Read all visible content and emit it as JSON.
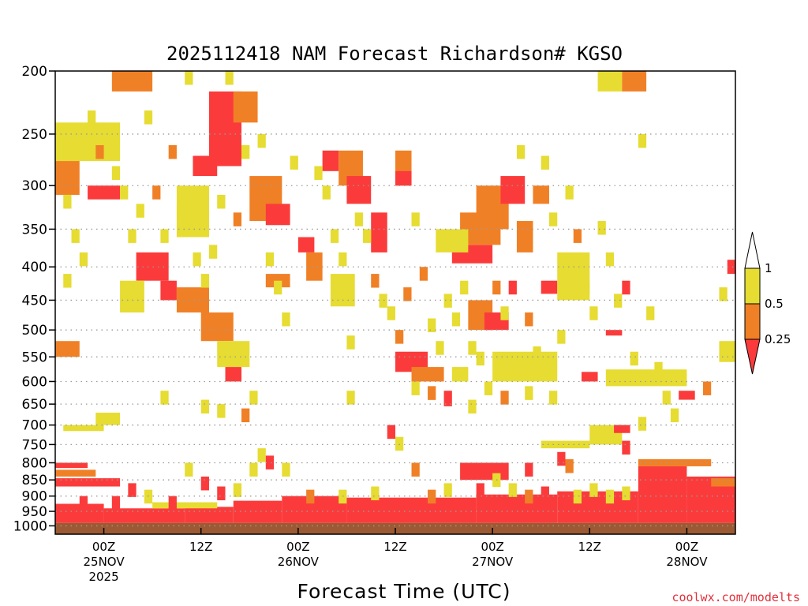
{
  "chart_data": {
    "type": "heatmap",
    "title": "2025112418 NAM Forecast Richardson# KGSO",
    "xlabel": "Forecast Time (UTC)",
    "ylabel": "",
    "credit": "coolwx.com/modelts",
    "y_scale": "log",
    "ylim": [
      1000,
      200
    ],
    "y_ticks": [
      200,
      250,
      300,
      350,
      400,
      450,
      500,
      550,
      600,
      650,
      700,
      750,
      800,
      850,
      900,
      950,
      1000
    ],
    "y_tick_labels": [
      "200",
      "250",
      "300",
      "350",
      "400",
      "450",
      "500",
      "550",
      "600",
      "650",
      "700",
      "750",
      "800",
      "850",
      "900",
      "950",
      "1000"
    ],
    "x_range_hours": [
      -6,
      78
    ],
    "x_ticks": [
      {
        "hour": 0,
        "lines": [
          "00Z",
          "25NOV",
          "2025"
        ]
      },
      {
        "hour": 12,
        "lines": [
          "12Z"
        ]
      },
      {
        "hour": 24,
        "lines": [
          "00Z",
          "26NOV"
        ]
      },
      {
        "hour": 36,
        "lines": [
          "12Z"
        ]
      },
      {
        "hour": 48,
        "lines": [
          "00Z",
          "27NOV"
        ]
      },
      {
        "hour": 60,
        "lines": [
          "12Z"
        ]
      },
      {
        "hour": 72,
        "lines": [
          "00Z",
          "28NOV"
        ]
      }
    ],
    "surface_pressure": 990,
    "colors": {
      "lt_025": "#fb3b3b",
      "025_05": "#f08026",
      "05_1": "#e6dc32",
      "ground": "#9b5a33",
      "grid": "#9a9a9a"
    },
    "legend": {
      "labels": [
        "1",
        "0.5",
        "0.25"
      ]
    },
    "bands": [
      {
        "h0": -6,
        "h1": 0,
        "p_top": 925,
        "p_bot": 990,
        "cls": "lt_025"
      },
      {
        "h0": 0,
        "h1": 10,
        "p_top": 940,
        "p_bot": 990,
        "cls": "lt_025"
      },
      {
        "h0": 10,
        "h1": 16,
        "p_top": 935,
        "p_bot": 990,
        "cls": "lt_025"
      },
      {
        "h0": 16,
        "h1": 22,
        "p_top": 915,
        "p_bot": 990,
        "cls": "lt_025"
      },
      {
        "h0": 22,
        "h1": 30,
        "p_top": 900,
        "p_bot": 990,
        "cls": "lt_025"
      },
      {
        "h0": 30,
        "h1": 46,
        "p_top": 905,
        "p_bot": 990,
        "cls": "lt_025"
      },
      {
        "h0": 46,
        "h1": 56,
        "p_top": 895,
        "p_bot": 990,
        "cls": "lt_025"
      },
      {
        "h0": 56,
        "h1": 66,
        "p_top": 885,
        "p_bot": 990,
        "cls": "lt_025"
      },
      {
        "h0": 66,
        "h1": 72,
        "p_top": 810,
        "p_bot": 990,
        "cls": "lt_025"
      },
      {
        "h0": 72,
        "h1": 78,
        "p_top": 840,
        "p_bot": 990,
        "cls": "lt_025"
      },
      {
        "h0": -6,
        "h1": -2,
        "p_top": 800,
        "p_bot": 815,
        "cls": "lt_025"
      },
      {
        "h0": -6,
        "h1": -1,
        "p_top": 820,
        "p_bot": 840,
        "cls": "025_05"
      },
      {
        "h0": -6,
        "h1": 2,
        "p_top": 845,
        "p_bot": 870,
        "cls": "lt_025"
      },
      {
        "h0": 6,
        "h1": 14,
        "p_top": 920,
        "p_bot": 940,
        "cls": "05_1"
      },
      {
        "h0": 44,
        "h1": 50,
        "p_top": 800,
        "p_bot": 850,
        "cls": "lt_025"
      },
      {
        "h0": 66,
        "h1": 75,
        "p_top": 790,
        "p_bot": 810,
        "cls": "025_05"
      },
      {
        "h0": 75,
        "h1": 78,
        "p_top": 845,
        "p_bot": 870,
        "cls": "025_05"
      },
      {
        "h0": -5,
        "h1": 0,
        "p_top": 700,
        "p_bot": 715,
        "cls": "05_1"
      },
      {
        "h0": -1,
        "h1": 2,
        "p_top": 670,
        "p_bot": 700,
        "cls": "05_1"
      },
      {
        "h0": 1,
        "h1": 6,
        "p_top": 200,
        "p_bot": 215,
        "cls": "025_05"
      },
      {
        "h0": 61,
        "h1": 64,
        "p_top": 200,
        "p_bot": 215,
        "cls": "05_1"
      },
      {
        "h0": 64,
        "h1": 67,
        "p_top": 200,
        "p_bot": 215,
        "cls": "025_05"
      },
      {
        "h0": -6,
        "h1": 2,
        "p_top": 240,
        "p_bot": 275,
        "cls": "05_1"
      },
      {
        "h0": -6,
        "h1": -3,
        "p_top": 275,
        "p_bot": 310,
        "cls": "025_05"
      },
      {
        "h0": -2,
        "h1": 2,
        "p_top": 300,
        "p_bot": 315,
        "cls": "lt_025"
      },
      {
        "h0": 13,
        "h1": 17,
        "p_top": 215,
        "p_bot": 280,
        "cls": "lt_025"
      },
      {
        "h0": 11,
        "h1": 14,
        "p_top": 270,
        "p_bot": 290,
        "cls": "lt_025"
      },
      {
        "h0": 16,
        "h1": 19,
        "p_top": 215,
        "p_bot": 240,
        "cls": "025_05"
      },
      {
        "h0": 18,
        "h1": 22,
        "p_top": 290,
        "p_bot": 340,
        "cls": "025_05"
      },
      {
        "h0": 20,
        "h1": 23,
        "p_top": 320,
        "p_bot": 345,
        "cls": "lt_025"
      },
      {
        "h0": 9,
        "h1": 13,
        "p_top": 300,
        "p_bot": 360,
        "cls": "05_1"
      },
      {
        "h0": 4,
        "h1": 8,
        "p_top": 380,
        "p_bot": 420,
        "cls": "lt_025"
      },
      {
        "h0": 7,
        "h1": 9,
        "p_top": 420,
        "p_bot": 450,
        "cls": "lt_025"
      },
      {
        "h0": 9,
        "h1": 13,
        "p_top": 430,
        "p_bot": 470,
        "cls": "025_05"
      },
      {
        "h0": 12,
        "h1": 16,
        "p_top": 470,
        "p_bot": 520,
        "cls": "025_05"
      },
      {
        "h0": 14,
        "h1": 18,
        "p_top": 520,
        "p_bot": 570,
        "cls": "05_1"
      },
      {
        "h0": 15,
        "h1": 17,
        "p_top": 570,
        "p_bot": 600,
        "cls": "lt_025"
      },
      {
        "h0": 27,
        "h1": 29,
        "p_top": 265,
        "p_bot": 285,
        "cls": "lt_025"
      },
      {
        "h0": 29,
        "h1": 32,
        "p_top": 265,
        "p_bot": 300,
        "cls": "025_05"
      },
      {
        "h0": 30,
        "h1": 33,
        "p_top": 290,
        "p_bot": 320,
        "cls": "lt_025"
      },
      {
        "h0": 33,
        "h1": 35,
        "p_top": 330,
        "p_bot": 380,
        "cls": "lt_025"
      },
      {
        "h0": 36,
        "h1": 38,
        "p_top": 265,
        "p_bot": 300,
        "cls": "025_05"
      },
      {
        "h0": 36,
        "h1": 38,
        "p_top": 285,
        "p_bot": 300,
        "cls": "lt_025"
      },
      {
        "h0": 43,
        "h1": 48,
        "p_top": 370,
        "p_bot": 395,
        "cls": "lt_025"
      },
      {
        "h0": 44,
        "h1": 49,
        "p_top": 330,
        "p_bot": 370,
        "cls": "025_05"
      },
      {
        "h0": 41,
        "h1": 45,
        "p_top": 350,
        "p_bot": 380,
        "cls": "05_1"
      },
      {
        "h0": 46,
        "h1": 50,
        "p_top": 300,
        "p_bot": 350,
        "cls": "025_05"
      },
      {
        "h0": 49,
        "h1": 52,
        "p_top": 290,
        "p_bot": 320,
        "cls": "lt_025"
      },
      {
        "h0": 51,
        "h1": 53,
        "p_top": 340,
        "p_bot": 380,
        "cls": "025_05"
      },
      {
        "h0": 53,
        "h1": 55,
        "p_top": 300,
        "p_bot": 320,
        "cls": "025_05"
      },
      {
        "h0": 54,
        "h1": 56,
        "p_top": 420,
        "p_bot": 440,
        "cls": "lt_025"
      },
      {
        "h0": 56,
        "h1": 60,
        "p_top": 380,
        "p_bot": 450,
        "cls": "05_1"
      },
      {
        "h0": 45,
        "h1": 48,
        "p_top": 450,
        "p_bot": 500,
        "cls": "025_05"
      },
      {
        "h0": 47,
        "h1": 50,
        "p_top": 470,
        "p_bot": 500,
        "cls": "lt_025"
      },
      {
        "h0": 36,
        "h1": 40,
        "p_top": 540,
        "p_bot": 580,
        "cls": "lt_025"
      },
      {
        "h0": 38,
        "h1": 42,
        "p_top": 570,
        "p_bot": 600,
        "cls": "025_05"
      },
      {
        "h0": 43,
        "h1": 45,
        "p_top": 570,
        "p_bot": 600,
        "cls": "05_1"
      },
      {
        "h0": 42,
        "h1": 43,
        "p_top": 620,
        "p_bot": 655,
        "cls": "lt_025"
      },
      {
        "h0": 48,
        "h1": 56,
        "p_top": 540,
        "p_bot": 600,
        "cls": "05_1"
      },
      {
        "h0": 62,
        "h1": 72,
        "p_top": 575,
        "p_bot": 610,
        "cls": "05_1"
      },
      {
        "h0": 62,
        "h1": 64,
        "p_top": 500,
        "p_bot": 510,
        "cls": "lt_025"
      },
      {
        "h0": 59,
        "h1": 61,
        "p_top": 580,
        "p_bot": 600,
        "cls": "lt_025"
      },
      {
        "h0": 71,
        "h1": 73,
        "p_top": 620,
        "p_bot": 640,
        "cls": "lt_025"
      },
      {
        "h0": 54,
        "h1": 60,
        "p_top": 740,
        "p_bot": 760,
        "cls": "05_1"
      },
      {
        "h0": 60,
        "h1": 64,
        "p_top": 700,
        "p_bot": 750,
        "cls": "05_1"
      },
      {
        "h0": 63,
        "h1": 65,
        "p_top": 700,
        "p_bot": 720,
        "cls": "lt_025"
      },
      {
        "h0": 77,
        "h1": 78,
        "p_top": 390,
        "p_bot": 410,
        "cls": "lt_025"
      },
      {
        "h0": 76,
        "h1": 78,
        "p_top": 520,
        "p_bot": 560,
        "cls": "05_1"
      },
      {
        "h0": 25,
        "h1": 27,
        "p_top": 380,
        "p_bot": 420,
        "cls": "025_05"
      },
      {
        "h0": 20,
        "h1": 23,
        "p_top": 410,
        "p_bot": 430,
        "cls": "025_05"
      },
      {
        "h0": 28,
        "h1": 31,
        "p_top": 410,
        "p_bot": 460,
        "cls": "05_1"
      },
      {
        "h0": 2,
        "h1": 5,
        "p_top": 420,
        "p_bot": 470,
        "cls": "05_1"
      },
      {
        "h0": -6,
        "h1": -3,
        "p_top": 520,
        "p_bot": 550,
        "cls": "025_05"
      },
      {
        "h0": 24,
        "h1": 26,
        "p_top": 360,
        "p_bot": 380,
        "cls": "lt_025"
      }
    ],
    "scatter_cells": [
      {
        "h": -5,
        "p": 310,
        "cls": "05_1"
      },
      {
        "h": -4,
        "p": 350,
        "cls": "05_1"
      },
      {
        "h": -3,
        "p": 380,
        "cls": "05_1"
      },
      {
        "h": -5,
        "p": 410,
        "cls": "05_1"
      },
      {
        "h": -2,
        "p": 230,
        "cls": "05_1"
      },
      {
        "h": -1,
        "p": 260,
        "cls": "025_05"
      },
      {
        "h": 1,
        "p": 280,
        "cls": "05_1"
      },
      {
        "h": 2,
        "p": 300,
        "cls": "05_1"
      },
      {
        "h": 3,
        "p": 350,
        "cls": "05_1"
      },
      {
        "h": 4,
        "p": 320,
        "cls": "05_1"
      },
      {
        "h": 5,
        "p": 230,
        "cls": "05_1"
      },
      {
        "h": 6,
        "p": 300,
        "cls": "025_05"
      },
      {
        "h": 7,
        "p": 350,
        "cls": "05_1"
      },
      {
        "h": 8,
        "p": 260,
        "cls": "025_05"
      },
      {
        "h": 9,
        "p": 320,
        "cls": "05_1"
      },
      {
        "h": 10,
        "p": 200,
        "cls": "05_1"
      },
      {
        "h": 11,
        "p": 380,
        "cls": "05_1"
      },
      {
        "h": 12,
        "p": 410,
        "cls": "05_1"
      },
      {
        "h": 13,
        "p": 370,
        "cls": "05_1"
      },
      {
        "h": 14,
        "p": 310,
        "cls": "05_1"
      },
      {
        "h": 15,
        "p": 200,
        "cls": "05_1"
      },
      {
        "h": 16,
        "p": 330,
        "cls": "025_05"
      },
      {
        "h": 17,
        "p": 260,
        "cls": "05_1"
      },
      {
        "h": 19,
        "p": 250,
        "cls": "05_1"
      },
      {
        "h": 20,
        "p": 380,
        "cls": "05_1"
      },
      {
        "h": 21,
        "p": 420,
        "cls": "05_1"
      },
      {
        "h": 22,
        "p": 470,
        "cls": "05_1"
      },
      {
        "h": 23,
        "p": 270,
        "cls": "05_1"
      },
      {
        "h": 26,
        "p": 280,
        "cls": "05_1"
      },
      {
        "h": 27,
        "p": 300,
        "cls": "05_1"
      },
      {
        "h": 28,
        "p": 350,
        "cls": "05_1"
      },
      {
        "h": 29,
        "p": 380,
        "cls": "05_1"
      },
      {
        "h": 30,
        "p": 510,
        "cls": "05_1"
      },
      {
        "h": 31,
        "p": 330,
        "cls": "05_1"
      },
      {
        "h": 32,
        "p": 350,
        "cls": "05_1"
      },
      {
        "h": 33,
        "p": 410,
        "cls": "025_05"
      },
      {
        "h": 34,
        "p": 440,
        "cls": "05_1"
      },
      {
        "h": 35,
        "p": 460,
        "cls": "05_1"
      },
      {
        "h": 36,
        "p": 500,
        "cls": "025_05"
      },
      {
        "h": 37,
        "p": 430,
        "cls": "025_05"
      },
      {
        "h": 38,
        "p": 330,
        "cls": "05_1"
      },
      {
        "h": 39,
        "p": 400,
        "cls": "025_05"
      },
      {
        "h": 40,
        "p": 480,
        "cls": "05_1"
      },
      {
        "h": 41,
        "p": 520,
        "cls": "05_1"
      },
      {
        "h": 42,
        "p": 440,
        "cls": "05_1"
      },
      {
        "h": 43,
        "p": 470,
        "cls": "05_1"
      },
      {
        "h": 44,
        "p": 420,
        "cls": "05_1"
      },
      {
        "h": 45,
        "p": 520,
        "cls": "05_1"
      },
      {
        "h": 46,
        "p": 540,
        "cls": "05_1"
      },
      {
        "h": 47,
        "p": 600,
        "cls": "05_1"
      },
      {
        "h": 48,
        "p": 420,
        "cls": "025_05"
      },
      {
        "h": 49,
        "p": 460,
        "cls": "05_1"
      },
      {
        "h": 50,
        "p": 420,
        "cls": "lt_025"
      },
      {
        "h": 51,
        "p": 260,
        "cls": "05_1"
      },
      {
        "h": 52,
        "p": 470,
        "cls": "025_05"
      },
      {
        "h": 53,
        "p": 530,
        "cls": "05_1"
      },
      {
        "h": 54,
        "p": 270,
        "cls": "05_1"
      },
      {
        "h": 55,
        "p": 330,
        "cls": "05_1"
      },
      {
        "h": 56,
        "p": 500,
        "cls": "05_1"
      },
      {
        "h": 57,
        "p": 300,
        "cls": "05_1"
      },
      {
        "h": 58,
        "p": 350,
        "cls": "025_05"
      },
      {
        "h": 59,
        "p": 420,
        "cls": "05_1"
      },
      {
        "h": 60,
        "p": 460,
        "cls": "05_1"
      },
      {
        "h": 61,
        "p": 340,
        "cls": "05_1"
      },
      {
        "h": 62,
        "p": 380,
        "cls": "05_1"
      },
      {
        "h": 63,
        "p": 440,
        "cls": "05_1"
      },
      {
        "h": 64,
        "p": 420,
        "cls": "lt_025"
      },
      {
        "h": 65,
        "p": 540,
        "cls": "05_1"
      },
      {
        "h": 66,
        "p": 250,
        "cls": "05_1"
      },
      {
        "h": 67,
        "p": 460,
        "cls": "05_1"
      },
      {
        "h": 68,
        "p": 560,
        "cls": "05_1"
      },
      {
        "h": 69,
        "p": 620,
        "cls": "05_1"
      },
      {
        "h": 70,
        "p": 660,
        "cls": "05_1"
      },
      {
        "h": 74,
        "p": 600,
        "cls": "025_05"
      },
      {
        "h": 76,
        "p": 430,
        "cls": "05_1"
      },
      {
        "h": 12,
        "p": 640,
        "cls": "05_1"
      },
      {
        "h": 14,
        "p": 650,
        "cls": "05_1"
      },
      {
        "h": 18,
        "p": 620,
        "cls": "05_1"
      },
      {
        "h": 17,
        "p": 660,
        "cls": "025_05"
      },
      {
        "h": 7,
        "p": 620,
        "cls": "05_1"
      },
      {
        "h": 30,
        "p": 620,
        "cls": "05_1"
      },
      {
        "h": 38,
        "p": 600,
        "cls": "05_1"
      },
      {
        "h": 40,
        "p": 610,
        "cls": "025_05"
      },
      {
        "h": 45,
        "p": 640,
        "cls": "05_1"
      },
      {
        "h": 49,
        "p": 620,
        "cls": "025_05"
      },
      {
        "h": 52,
        "p": 610,
        "cls": "05_1"
      },
      {
        "h": 55,
        "p": 620,
        "cls": "05_1"
      },
      {
        "h": 10,
        "p": 800,
        "cls": "05_1"
      },
      {
        "h": 12,
        "p": 840,
        "cls": "lt_025"
      },
      {
        "h": 14,
        "p": 870,
        "cls": "lt_025"
      },
      {
        "h": 16,
        "p": 860,
        "cls": "05_1"
      },
      {
        "h": 18,
        "p": 800,
        "cls": "05_1"
      },
      {
        "h": 19,
        "p": 760,
        "cls": "05_1"
      },
      {
        "h": 20,
        "p": 780,
        "cls": "lt_025"
      },
      {
        "h": 22,
        "p": 800,
        "cls": "05_1"
      },
      {
        "h": 35,
        "p": 700,
        "cls": "lt_025"
      },
      {
        "h": 36,
        "p": 730,
        "cls": "05_1"
      },
      {
        "h": 38,
        "p": 800,
        "cls": "025_05"
      },
      {
        "h": 42,
        "p": 860,
        "cls": "05_1"
      },
      {
        "h": 52,
        "p": 800,
        "cls": "lt_025"
      },
      {
        "h": 56,
        "p": 770,
        "cls": "lt_025"
      },
      {
        "h": 57,
        "p": 790,
        "cls": "025_05"
      },
      {
        "h": 60,
        "p": 860,
        "cls": "05_1"
      },
      {
        "h": 64,
        "p": 740,
        "cls": "lt_025"
      },
      {
        "h": 66,
        "p": 680,
        "cls": "05_1"
      },
      {
        "h": 3,
        "p": 860,
        "cls": "lt_025"
      },
      {
        "h": 5,
        "p": 880,
        "cls": "05_1"
      },
      {
        "h": 8,
        "p": 900,
        "cls": "lt_025"
      },
      {
        "h": 1,
        "p": 900,
        "cls": "lt_025"
      },
      {
        "h": -3,
        "p": 900,
        "cls": "lt_025"
      },
      {
        "h": 25,
        "p": 880,
        "cls": "025_05"
      },
      {
        "h": 29,
        "p": 880,
        "cls": "05_1"
      },
      {
        "h": 33,
        "p": 870,
        "cls": "05_1"
      },
      {
        "h": 40,
        "p": 880,
        "cls": "025_05"
      },
      {
        "h": 46,
        "p": 860,
        "cls": "lt_025"
      },
      {
        "h": 48,
        "p": 830,
        "cls": "05_1"
      },
      {
        "h": 50,
        "p": 860,
        "cls": "05_1"
      },
      {
        "h": 52,
        "p": 880,
        "cls": "025_05"
      },
      {
        "h": 54,
        "p": 870,
        "cls": "lt_025"
      },
      {
        "h": 58,
        "p": 880,
        "cls": "05_1"
      },
      {
        "h": 62,
        "p": 880,
        "cls": "05_1"
      },
      {
        "h": 64,
        "p": 870,
        "cls": "05_1"
      }
    ]
  }
}
